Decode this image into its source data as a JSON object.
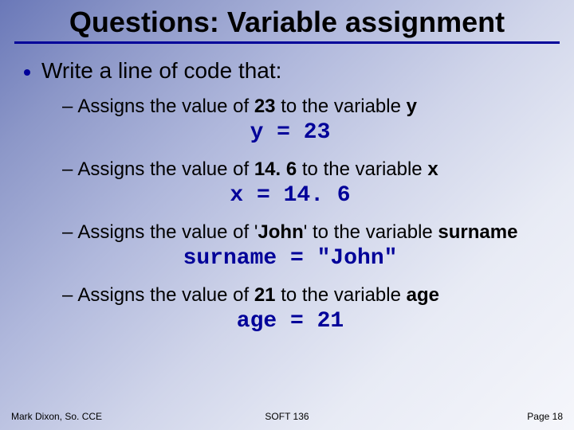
{
  "colors": {
    "accent": "#000099",
    "text": "#000000",
    "background_gradient_start": "#6a78b8",
    "background_gradient_end": "#f5f6fb"
  },
  "typography": {
    "title_fontsize": 36,
    "body_fontsize": 28,
    "sublist_fontsize": 24,
    "code_fontsize": 28,
    "footer_fontsize": 12,
    "title_font": "Arial",
    "code_font": "Courier New"
  },
  "title": "Questions: Variable assignment",
  "intro": "Write a line of code that:",
  "items": [
    {
      "prefix": "Assigns the value of ",
      "value": "23",
      "mid": " to the variable ",
      "variable": "y",
      "code": "y = 23"
    },
    {
      "prefix": "Assigns the value of ",
      "value": "14. 6",
      "mid": " to the variable ",
      "variable": "x",
      "code": "x = 14. 6"
    },
    {
      "prefix": "Assigns the value of '",
      "value": "John",
      "mid": "' to the variable ",
      "variable": "surname",
      "code": "surname = \"John\""
    },
    {
      "prefix": "Assigns the value of ",
      "value": "21",
      "mid": " to the variable ",
      "variable": "age",
      "code": "age = 21"
    }
  ],
  "footer": {
    "left": "Mark Dixon, So. CCE",
    "center": "SOFT 136",
    "right": "Page 18"
  }
}
